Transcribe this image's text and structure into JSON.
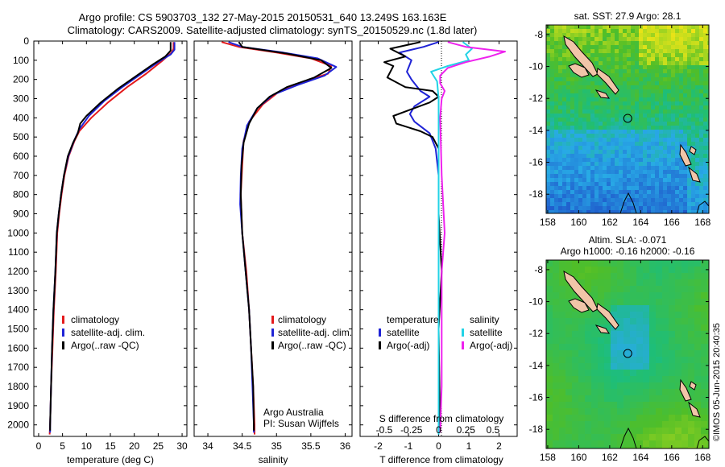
{
  "header": {
    "line1": "Argo profile: CS 5903703_132 27-May-2015 20150531_640 13.249S 163.163E",
    "line2": "Climatology: CARS2009. Satellite-adjusted climatology: synTS_20150529.nc (1.8d later)"
  },
  "watermark": "©IMOS 05-Jun-2015 20:40:35",
  "colors": {
    "climatology": "#e41a1c",
    "satellite": "#1f23d6",
    "argo": "#000000",
    "sal_satellite": "#22d3e6",
    "sal_argo": "#ee22ee"
  },
  "chart_data": [
    {
      "type": "line",
      "id": "temperature",
      "xlabel": "temperature (deg C)",
      "ylabel": "",
      "xlim": [
        -1,
        31
      ],
      "ylim": [
        2060,
        0
      ],
      "xticks": [
        0,
        5,
        10,
        15,
        20,
        25,
        30
      ],
      "yticks": [
        0,
        100,
        200,
        300,
        400,
        500,
        600,
        700,
        800,
        900,
        1000,
        1100,
        1200,
        1300,
        1400,
        1500,
        1600,
        1700,
        1800,
        1900,
        2000
      ],
      "legend": [
        "climatology",
        "satellite-adj. clim.",
        "Argo(..raw -QC)"
      ],
      "series": [
        {
          "name": "climatology",
          "points": [
            [
              28.2,
              5
            ],
            [
              28.2,
              40
            ],
            [
              27.8,
              60
            ],
            [
              26,
              100
            ],
            [
              22.5,
              170
            ],
            [
              18.5,
              240
            ],
            [
              14.5,
              320
            ],
            [
              11,
              400
            ],
            [
              8.5,
              470
            ],
            [
              7.5,
              520
            ],
            [
              6.3,
              600
            ],
            [
              5.4,
              700
            ],
            [
              4.8,
              800
            ],
            [
              4.3,
              900
            ],
            [
              3.9,
              1000
            ],
            [
              3.6,
              1200
            ],
            [
              3.2,
              1400
            ],
            [
              2.9,
              1600
            ],
            [
              2.6,
              1800
            ],
            [
              2.4,
              2000
            ],
            [
              2.3,
              2050
            ]
          ]
        },
        {
          "name": "satellite-adj. clim.",
          "points": [
            [
              28.4,
              5
            ],
            [
              28.4,
              45
            ],
            [
              27.6,
              70
            ],
            [
              25,
              110
            ],
            [
              21.5,
              170
            ],
            [
              17.5,
              240
            ],
            [
              13.8,
              310
            ],
            [
              10.5,
              390
            ],
            [
              8.5,
              460
            ],
            [
              7.4,
              520
            ],
            [
              6.2,
              600
            ],
            [
              5.3,
              700
            ],
            [
              4.7,
              800
            ],
            [
              4.2,
              900
            ],
            [
              3.8,
              1000
            ],
            [
              3.5,
              1200
            ],
            [
              3.1,
              1400
            ],
            [
              2.8,
              1600
            ],
            [
              2.6,
              1800
            ],
            [
              2.4,
              2000
            ],
            [
              2.4,
              2040
            ]
          ]
        },
        {
          "name": "Argo(..raw -QC)",
          "points": [
            [
              27.6,
              5
            ],
            [
              27.6,
              50
            ],
            [
              26.5,
              80
            ],
            [
              24,
              120
            ],
            [
              20.5,
              180
            ],
            [
              16.5,
              250
            ],
            [
              13,
              320
            ],
            [
              10,
              390
            ],
            [
              8.7,
              430
            ],
            [
              8.2,
              480
            ],
            [
              7.2,
              530
            ],
            [
              6.1,
              600
            ],
            [
              5.3,
              700
            ],
            [
              4.7,
              800
            ],
            [
              4.2,
              900
            ],
            [
              3.8,
              1000
            ],
            [
              3.5,
              1200
            ],
            [
              3.1,
              1400
            ],
            [
              2.8,
              1600
            ],
            [
              2.6,
              1800
            ],
            [
              2.4,
              2000
            ],
            [
              2.4,
              2030
            ]
          ]
        }
      ]
    },
    {
      "type": "line",
      "id": "salinity",
      "xlabel": "salinity",
      "ylabel": "",
      "xlim": [
        33.8,
        36.1
      ],
      "ylim": [
        2060,
        0
      ],
      "xticks": [
        34,
        34.5,
        35,
        35.5,
        36
      ],
      "legend": [
        "climatology",
        "satellite-adj. clim.",
        "Argo(..raw -QC)"
      ],
      "annotation": [
        "Argo Australia",
        "PI: Susan Wijffels"
      ],
      "series": [
        {
          "name": "climatology",
          "points": [
            [
              34.2,
              5
            ],
            [
              34.45,
              30
            ],
            [
              35,
              60
            ],
            [
              35.5,
              90
            ],
            [
              35.8,
              130
            ],
            [
              35.75,
              170
            ],
            [
              35.4,
              210
            ],
            [
              35.05,
              260
            ],
            [
              34.8,
              330
            ],
            [
              34.6,
              420
            ],
            [
              34.52,
              520
            ],
            [
              34.5,
              650
            ],
            [
              34.48,
              800
            ],
            [
              34.5,
              1000
            ],
            [
              34.56,
              1200
            ],
            [
              34.6,
              1400
            ],
            [
              34.63,
              1600
            ],
            [
              34.66,
              1800
            ],
            [
              34.68,
              2000
            ],
            [
              34.68,
              2050
            ]
          ]
        },
        {
          "name": "satellite-adj. clim.",
          "points": [
            [
              34.3,
              5
            ],
            [
              34.5,
              30
            ],
            [
              35.1,
              60
            ],
            [
              35.6,
              90
            ],
            [
              35.87,
              135
            ],
            [
              35.7,
              180
            ],
            [
              35.3,
              230
            ],
            [
              34.95,
              280
            ],
            [
              34.72,
              350
            ],
            [
              34.57,
              440
            ],
            [
              34.5,
              560
            ],
            [
              34.48,
              700
            ],
            [
              34.47,
              850
            ],
            [
              34.5,
              1000
            ],
            [
              34.55,
              1200
            ],
            [
              34.6,
              1400
            ],
            [
              34.63,
              1600
            ],
            [
              34.65,
              1800
            ],
            [
              34.67,
              2000
            ],
            [
              34.67,
              2040
            ]
          ]
        },
        {
          "name": "Argo(..raw -QC)",
          "points": [
            [
              34.45,
              5
            ],
            [
              34.5,
              30
            ],
            [
              35.15,
              65
            ],
            [
              35.65,
              100
            ],
            [
              35.8,
              140
            ],
            [
              35.55,
              190
            ],
            [
              35.15,
              240
            ],
            [
              34.9,
              290
            ],
            [
              34.72,
              350
            ],
            [
              34.6,
              430
            ],
            [
              34.52,
              530
            ],
            [
              34.49,
              650
            ],
            [
              34.48,
              800
            ],
            [
              34.5,
              1000
            ],
            [
              34.55,
              1200
            ],
            [
              34.6,
              1400
            ],
            [
              34.63,
              1600
            ],
            [
              34.66,
              1800
            ],
            [
              34.67,
              2000
            ],
            [
              34.67,
              2030
            ]
          ]
        }
      ]
    },
    {
      "type": "line",
      "id": "difference",
      "xlabel": "T difference from climatology",
      "xlabel_top": "S difference from climatology",
      "ylabel": "",
      "xlim": [
        -2.6,
        2.6
      ],
      "ylim": [
        2060,
        0
      ],
      "xticks": [
        -2,
        -1,
        0,
        1,
        2
      ],
      "sticks": [
        "-0.5",
        "-0.25",
        "0",
        "0.25",
        "0.5"
      ],
      "sticks_x": [
        -1.8,
        -0.9,
        0,
        0.9,
        1.8
      ],
      "legend_left_title": "temperature",
      "legend_left": [
        "satellite",
        "Argo(-adj)"
      ],
      "legend_right_title": "salinity",
      "legend_right": [
        "satellite",
        "Argo(-adj)"
      ],
      "series": [
        {
          "name": "satellite",
          "color_key": "satellite",
          "points": [
            [
              0,
              5
            ],
            [
              -0.5,
              30
            ],
            [
              -1.3,
              60
            ],
            [
              -0.9,
              100
            ],
            [
              -1.05,
              160
            ],
            [
              -0.9,
              200
            ],
            [
              -0.6,
              260
            ],
            [
              -0.3,
              290
            ],
            [
              -0.8,
              340
            ],
            [
              -0.95,
              380
            ],
            [
              -0.8,
              420
            ],
            [
              -0.3,
              480
            ],
            [
              -0.1,
              560
            ],
            [
              0,
              700
            ],
            [
              0,
              1000
            ],
            [
              0,
              1500
            ],
            [
              0,
              2050
            ]
          ]
        },
        {
          "name": "Argo(-adj)",
          "color_key": "argo",
          "points": [
            [
              -0.6,
              5
            ],
            [
              -1.6,
              40
            ],
            [
              -1.1,
              80
            ],
            [
              -1.8,
              110
            ],
            [
              -1.5,
              130
            ],
            [
              -1.7,
              190
            ],
            [
              -1.1,
              240
            ],
            [
              -0.2,
              260
            ],
            [
              0,
              290
            ],
            [
              -0.3,
              320
            ],
            [
              -1.5,
              390
            ],
            [
              -1.4,
              430
            ],
            [
              -0.6,
              470
            ],
            [
              -0.2,
              500
            ],
            [
              0,
              560
            ],
            [
              0,
              700
            ],
            [
              0,
              900
            ],
            [
              0.1,
              1200
            ],
            [
              0,
              1500
            ],
            [
              0.05,
              2040
            ]
          ]
        },
        {
          "name": "satellite",
          "color_key": "sal_satellite",
          "points": [
            [
              0.8,
              5
            ],
            [
              1.1,
              40
            ],
            [
              0.9,
              70
            ],
            [
              1.0,
              100
            ],
            [
              0.3,
              130
            ],
            [
              -0.25,
              160
            ],
            [
              -0.05,
              210
            ],
            [
              0,
              300
            ],
            [
              0,
              500
            ],
            [
              0,
              2050
            ]
          ]
        },
        {
          "name": "Argo(-adj)",
          "color_key": "sal_argo",
          "points": [
            [
              0.3,
              5
            ],
            [
              0.9,
              30
            ],
            [
              2.2,
              55
            ],
            [
              1.7,
              80
            ],
            [
              0.9,
              110
            ],
            [
              0.3,
              140
            ],
            [
              0.05,
              180
            ],
            [
              0.05,
              220
            ],
            [
              0.2,
              260
            ],
            [
              0.1,
              300
            ],
            [
              0.05,
              400
            ],
            [
              0.1,
              700
            ],
            [
              0.2,
              1000
            ],
            [
              0.1,
              1200
            ],
            [
              0.1,
              1400
            ],
            [
              0.1,
              1600
            ],
            [
              0.1,
              1800
            ],
            [
              0.05,
              2040
            ]
          ]
        }
      ]
    },
    {
      "type": "heatmap",
      "id": "sst",
      "title": "sat. SST: 27.9 Argo: 28.1",
      "xticks": [
        158,
        160,
        162,
        164,
        166,
        168
      ],
      "yticks": [
        -8,
        -10,
        -12,
        -14,
        -16,
        -18
      ],
      "xlim": [
        157.9,
        168.4
      ],
      "ylim": [
        -19.2,
        -7.4
      ],
      "profile_location": [
        163.163,
        -13.249
      ]
    },
    {
      "type": "heatmap",
      "id": "sla",
      "title": "Altim. SLA: -0.071",
      "subtitle": "Argo h1000: -0.16 h2000: -0.16",
      "xticks": [
        158,
        160,
        162,
        164,
        166,
        168
      ],
      "yticks": [
        -8,
        -10,
        -12,
        -14,
        -16,
        -18
      ],
      "xlim": [
        157.9,
        168.4
      ],
      "ylim": [
        -19.2,
        -7.4
      ],
      "profile_location": [
        163.163,
        -13.249
      ]
    }
  ]
}
